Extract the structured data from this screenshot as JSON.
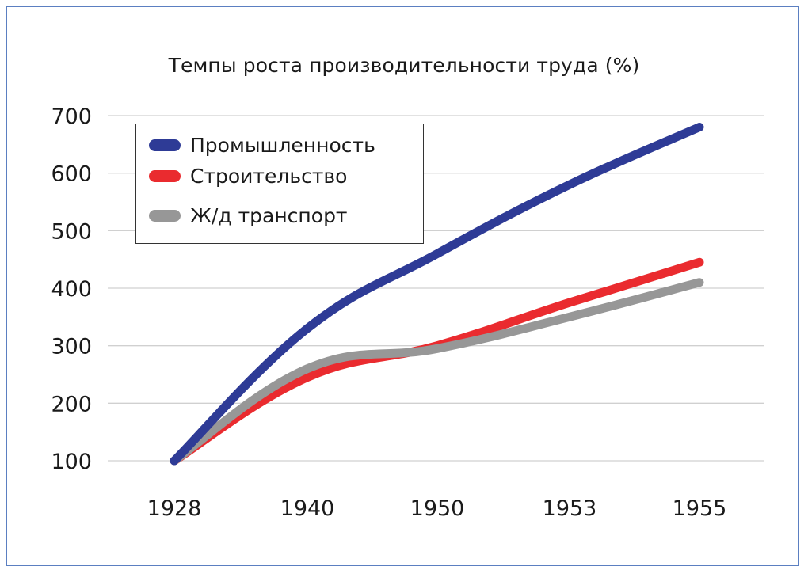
{
  "chart_data": {
    "type": "line",
    "title": "Темпы роста производительности труда (%)",
    "categories": [
      "1928",
      "1940",
      "1950",
      "1953",
      "1955"
    ],
    "ylim": [
      100,
      700
    ],
    "yticks": [
      100,
      200,
      300,
      400,
      500,
      600,
      700
    ],
    "grid": true,
    "legend_position": "top-left",
    "series": [
      {
        "name": "Промышленность",
        "color": "#2e3b96",
        "values": [
          100,
          330,
          460,
          580,
          680
        ]
      },
      {
        "name": "Строительство",
        "color": "#ea2b2f",
        "values": [
          100,
          245,
          300,
          375,
          445
        ]
      },
      {
        "name": "Ж/д транспорт",
        "color": "#979797",
        "values": [
          100,
          260,
          295,
          350,
          410
        ]
      }
    ]
  }
}
